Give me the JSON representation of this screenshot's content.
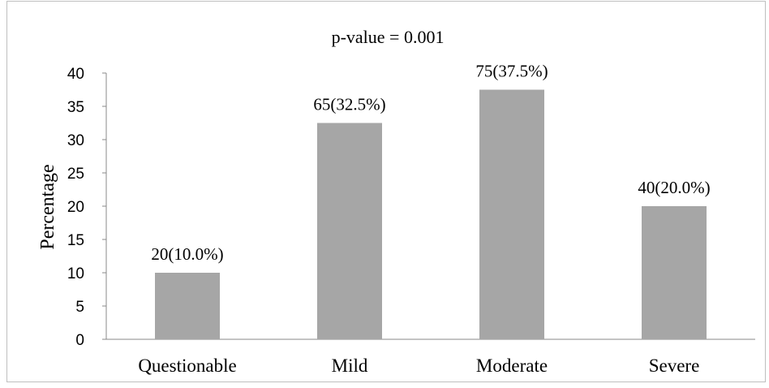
{
  "chart_data": {
    "type": "bar",
    "title": "p-value = 0.001",
    "xlabel": "",
    "ylabel": "Percentage",
    "categories": [
      "Questionable",
      "Mild",
      "Moderate",
      "Severe"
    ],
    "values": [
      10.0,
      32.5,
      37.5,
      20.0
    ],
    "data_labels": [
      "20(10.0%)",
      "65(32.5%)",
      "75(37.5%)",
      "40(20.0%)"
    ],
    "ylim": [
      0,
      40
    ],
    "yticks": [
      "0",
      "5",
      "10",
      "15",
      "20",
      "25",
      "30",
      "35",
      "40"
    ],
    "grid": false,
    "legend": "none",
    "bar_color": "#a6a6a6"
  }
}
